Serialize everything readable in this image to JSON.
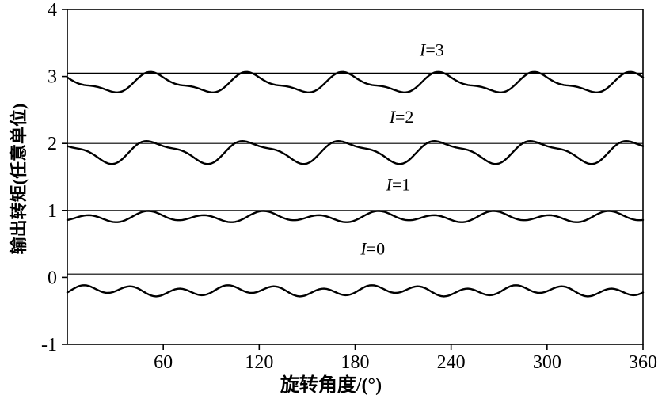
{
  "chart_data": {
    "type": "line",
    "title": "",
    "xlabel": "旋转角度/(°)",
    "ylabel": "输出转矩(任意单位)",
    "xlim": [
      0,
      360
    ],
    "ylim": [
      -1,
      4
    ],
    "x_ticks": [
      60,
      120,
      180,
      240,
      300,
      360
    ],
    "y_ticks": [
      -1,
      0,
      1,
      2,
      3,
      4
    ],
    "grid": false,
    "legend": "inline-labels",
    "line_color": "#000000",
    "background": "#ffffff",
    "description": "Four oscillating output-torque curves versus rotation angle, one per current level I=0..3, each drawn below a thin horizontal reference line. Curves are modeled as baseline + sum of cosine harmonics amp*cos(2*pi*(x-phase)/period).",
    "series": [
      {
        "label": "I=3",
        "baseline": 2.9,
        "reference_line": 3.05,
        "approx_range": [
          2.76,
          3.06
        ],
        "harmonics": [
          {
            "amp": 0.13,
            "period": 60,
            "phase": 55
          },
          {
            "amp": 0.05,
            "period": 30,
            "phase": 50
          }
        ],
        "label_x": 228,
        "label_y": 3.31
      },
      {
        "label": "I=2",
        "baseline": 1.88,
        "reference_line": 2.0,
        "approx_range": [
          1.7,
          2.06
        ],
        "harmonics": [
          {
            "amp": 0.15,
            "period": 60,
            "phase": 55
          },
          {
            "amp": 0.05,
            "period": 30,
            "phase": 45
          }
        ],
        "label_x": 209,
        "label_y": 2.31
      },
      {
        "label": "I=1",
        "baseline": 0.9,
        "reference_line": 1.0,
        "approx_range": [
          0.8,
          1.0
        ],
        "harmonics": [
          {
            "amp": 0.06,
            "period": 36,
            "phase": 50
          },
          {
            "amp": 0.035,
            "period": 72,
            "phase": 55
          }
        ],
        "label_x": 207,
        "label_y": 1.3
      },
      {
        "label": "I=0",
        "baseline": -0.2,
        "reference_line": 0.05,
        "approx_range": [
          -0.29,
          -0.11
        ],
        "harmonics": [
          {
            "amp": 0.06,
            "period": 30,
            "phase": 10
          },
          {
            "amp": 0.03,
            "period": 90,
            "phase": 20
          }
        ],
        "label_x": 191,
        "label_y": 0.34
      }
    ]
  }
}
